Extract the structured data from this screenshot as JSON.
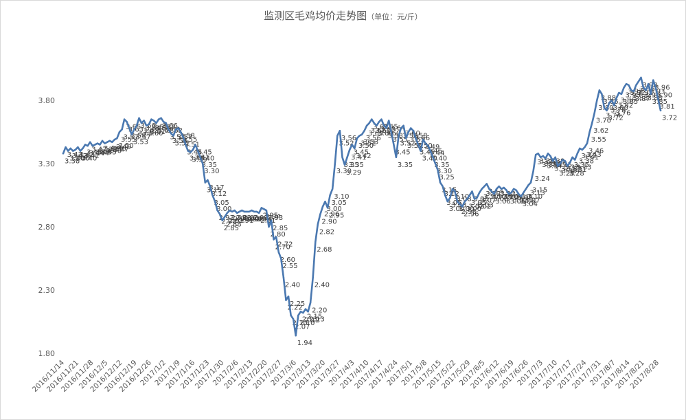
{
  "chart_data": {
    "type": "line",
    "title": "监测区毛鸡均价走势图",
    "subtitle": "（单位：元/斤）",
    "xlabel": "",
    "ylabel": "",
    "ylim": [
      1.8,
      4.0
    ],
    "yticks": [
      "1.80",
      "2.30",
      "2.80",
      "3.30",
      "3.80"
    ],
    "x_tick_labels": [
      "2016/11/14",
      "2016/11/21",
      "2016/11/28",
      "2016/12/5",
      "2016/12/12",
      "2016/12/19",
      "2016/12/26",
      "2017/1/2",
      "2017/1/9",
      "2017/1/16",
      "2017/1/23",
      "2017/1/30",
      "2017/2/6",
      "2017/2/13",
      "2017/2/20",
      "2017/2/27",
      "2017/3/6",
      "2017/3/13",
      "2017/3/20",
      "2017/3/27",
      "2017/4/3",
      "2017/4/10",
      "2017/4/17",
      "2017/4/24",
      "2017/5/1",
      "2017/5/8",
      "2017/5/15",
      "2017/5/22",
      "2017/5/29",
      "2017/6/5",
      "2017/6/12",
      "2017/6/19",
      "2017/6/26",
      "2017/7/3",
      "2017/7/10",
      "2017/7/17",
      "2017/7/24",
      "2017/7/31",
      "2017/8/7",
      "2017/8/14",
      "2017/8/21",
      "2017/8/28"
    ],
    "grid": false,
    "legend": "none",
    "line_color": "#4a78b0",
    "series": [
      {
        "values": [
          3.38,
          3.43,
          3.4,
          3.42,
          3.4,
          3.41,
          3.43,
          3.4,
          3.42,
          3.45,
          3.44,
          3.47,
          3.44,
          3.45,
          3.46,
          3.45,
          3.48,
          3.46,
          3.47,
          3.48,
          3.47,
          3.49,
          3.5,
          3.55,
          3.57,
          3.65,
          3.63,
          3.58,
          3.53,
          3.57,
          3.6,
          3.66,
          3.62,
          3.64,
          3.6,
          3.61,
          3.65,
          3.64,
          3.62,
          3.65,
          3.66,
          3.63,
          3.62,
          3.57,
          3.54,
          3.52,
          3.57,
          3.58,
          3.55,
          3.51,
          3.45,
          3.4,
          3.39,
          3.41,
          3.45,
          3.4,
          3.35,
          3.3,
          3.15,
          3.17,
          3.12,
          3.05,
          3.0,
          2.93,
          2.9,
          2.85,
          2.88,
          2.91,
          2.93,
          2.92,
          2.93,
          2.91,
          2.92,
          2.93,
          2.92,
          2.92,
          2.92,
          2.93,
          2.92,
          2.92,
          2.91,
          2.95,
          2.94,
          2.93,
          2.8,
          2.85,
          2.7,
          2.72,
          2.6,
          2.55,
          2.4,
          2.22,
          2.25,
          2.1,
          2.07,
          1.94,
          2.1,
          2.13,
          2.12,
          2.15,
          2.13,
          2.2,
          2.4,
          2.68,
          2.82,
          2.9,
          2.96,
          3.0,
          2.95,
          3.05,
          3.1,
          3.3,
          3.52,
          3.56,
          3.35,
          3.29,
          3.35,
          3.41,
          3.45,
          3.42,
          3.5,
          3.52,
          3.53,
          3.56,
          3.6,
          3.62,
          3.65,
          3.62,
          3.6,
          3.63,
          3.65,
          3.6,
          3.58,
          3.64,
          3.55,
          3.45,
          3.35,
          3.52,
          3.58,
          3.6,
          3.5,
          3.55,
          3.58,
          3.56,
          3.5,
          3.45,
          3.4,
          3.49,
          3.46,
          3.44,
          3.4,
          3.35,
          3.3,
          3.25,
          3.15,
          3.12,
          3.05,
          3.0,
          3.03,
          3.1,
          3.08,
          3.0,
          2.98,
          2.96,
          3.0,
          3.02,
          3.05,
          3.08,
          3.02,
          3.03,
          3.07,
          3.1,
          3.12,
          3.14,
          3.1,
          3.08,
          3.06,
          3.1,
          3.12,
          3.1,
          3.11,
          3.09,
          3.06,
          3.07,
          3.1,
          3.09,
          3.06,
          3.04,
          3.07,
          3.1,
          3.13,
          3.15,
          3.24,
          3.37,
          3.38,
          3.35,
          3.36,
          3.34,
          3.38,
          3.36,
          3.32,
          3.35,
          3.28,
          3.3,
          3.33,
          3.32,
          3.28,
          3.31,
          3.35,
          3.33,
          3.38,
          3.42,
          3.41,
          3.43,
          3.46,
          3.55,
          3.62,
          3.7,
          3.8,
          3.88,
          3.85,
          3.74,
          3.72,
          3.78,
          3.8,
          3.76,
          3.82,
          3.86,
          3.85,
          3.9,
          3.93,
          3.92,
          3.88,
          3.87,
          3.92,
          3.95,
          3.98,
          3.9,
          3.88,
          3.93,
          3.85,
          3.96,
          3.9,
          3.81,
          3.72
        ]
      }
    ],
    "value_labels": [
      "3.38",
      "3.43",
      "3.40",
      "3.42",
      "3.40",
      "3.41",
      "3.43",
      "3.40",
      "3.42",
      "3.45",
      "3.44",
      "3.47",
      "3.44",
      "3.45",
      "3.46",
      "3.45",
      "3.48",
      "3.46",
      "3.47",
      "3.48",
      "3.47",
      "3.49",
      "3.50",
      "3.55",
      "3.57",
      "3.65",
      "3.63",
      "3.58",
      "3.53",
      "3.57",
      "3.60",
      "3.66",
      "3.62",
      "3.64",
      "3.60",
      "3.61",
      "3.65",
      "3.64",
      "3.62",
      "3.65",
      "3.66",
      "3.63",
      "3.62",
      "3.57",
      "3.54",
      "3.52",
      "3.57",
      "3.58",
      "3.55",
      "3.51",
      "3.45",
      "3.40",
      "3.39",
      "3.41",
      "3.45",
      "3.40",
      "3.35",
      "3.30",
      "3.15",
      "3.17",
      "3.12",
      "3.05",
      "3.00",
      "2.93",
      "2.90",
      "2.85",
      "2.88",
      "2.91",
      "2.93",
      "2.92",
      "2.93",
      "2.91",
      "2.92",
      "2.93",
      "2.92",
      "2.92",
      "2.92",
      "2.93",
      "2.92",
      "2.92",
      "2.91",
      "2.95",
      "2.94",
      "2.93",
      "2.80",
      "2.85",
      "2.70",
      "2.72",
      "2.60",
      "2.55",
      "2.40",
      "2.22",
      "2.25",
      "2.10",
      "2.07",
      "1.94",
      "2.10",
      "2.13",
      "2.12",
      "2.15",
      "2.13",
      "2.20",
      "2.40",
      "2.68",
      "2.82",
      "2.90",
      "2.96",
      "3.00",
      "2.95",
      "3.05",
      "3.10",
      "3.30",
      "3.52",
      "3.56",
      "3.35",
      "3.29",
      "3.35",
      "3.41",
      "3.45",
      "3.42",
      "3.50",
      "3.52",
      "3.53",
      "3.56",
      "3.60",
      "3.62",
      "3.65",
      "3.62",
      "3.60",
      "3.63",
      "3.65",
      "3.60",
      "3.58",
      "3.64",
      "3.55",
      "3.45",
      "3.35",
      "3.52",
      "3.58",
      "3.60",
      "3.50",
      "3.55",
      "3.58",
      "3.56",
      "3.50",
      "3.45",
      "3.40",
      "3.49",
      "3.46",
      "3.44",
      "3.40",
      "3.35",
      "3.30",
      "3.25",
      "3.15",
      "3.12",
      "3.05",
      "3.00",
      "3.03",
      "3.10",
      "3.08",
      "3.00",
      "2.98",
      "2.96",
      "3.00",
      "3.02",
      "3.05",
      "3.08",
      "3.02",
      "3.03",
      "3.07",
      "3.10",
      "3.12",
      "3.14",
      "3.10",
      "3.08",
      "3.06",
      "3.10",
      "3.12",
      "3.10",
      "3.11",
      "3.09",
      "3.06",
      "3.07",
      "3.10",
      "3.09",
      "3.06",
      "3.04",
      "3.07",
      "3.10",
      "3.13",
      "3.15",
      "3.24",
      "3.37",
      "3.38",
      "3.35",
      "3.36",
      "3.34",
      "3.38",
      "3.36",
      "3.32",
      "3.35",
      "3.28",
      "3.30",
      "3.33",
      "3.32",
      "3.28",
      "3.31",
      "3.35",
      "3.33",
      "3.38",
      "3.42",
      "3.41",
      "3.43",
      "3.46",
      "3.55",
      "3.62",
      "3.70",
      "3.80",
      "3.88",
      "3.85",
      "3.74",
      "3.72",
      "3.78",
      "3.80",
      "3.76",
      "3.82",
      "3.86",
      "3.85",
      "3.90",
      "3.93",
      "3.92",
      "3.88",
      "3.87",
      "3.92",
      "3.95",
      "3.98",
      "3.90",
      "3.88",
      "3.93",
      "3.85",
      "3.96",
      "3.90",
      "3.81",
      "3.72"
    ]
  }
}
